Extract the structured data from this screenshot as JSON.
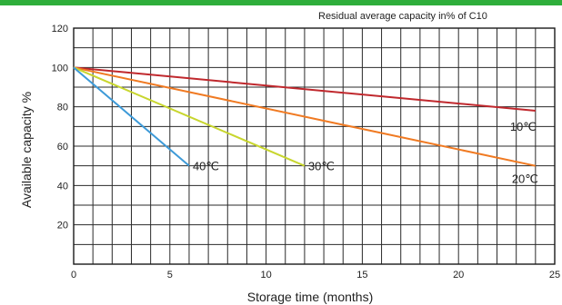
{
  "chart_data": {
    "type": "line",
    "title": "",
    "annotation": "Residual average capacity in% of C10",
    "xlabel": "Storage time (months)",
    "ylabel": "Available capacity %",
    "xlim": [
      0,
      25
    ],
    "ylim": [
      0,
      120
    ],
    "x_ticks": [
      0,
      5,
      10,
      15,
      20,
      25
    ],
    "y_ticks": [
      20,
      40,
      60,
      80,
      100,
      120
    ],
    "grid": true,
    "series": [
      {
        "name": "10℃",
        "color": "#c0282d",
        "points": [
          [
            0,
            100
          ],
          [
            24,
            78
          ]
        ]
      },
      {
        "name": "20℃",
        "color": "#f07a22",
        "points": [
          [
            0,
            100
          ],
          [
            24,
            50
          ]
        ]
      },
      {
        "name": "30℃",
        "color": "#c8d62e",
        "points": [
          [
            0,
            100
          ],
          [
            12,
            50
          ]
        ]
      },
      {
        "name": "40℃",
        "color": "#3d9ad8",
        "points": [
          [
            0,
            100
          ],
          [
            6,
            50
          ]
        ]
      }
    ]
  }
}
